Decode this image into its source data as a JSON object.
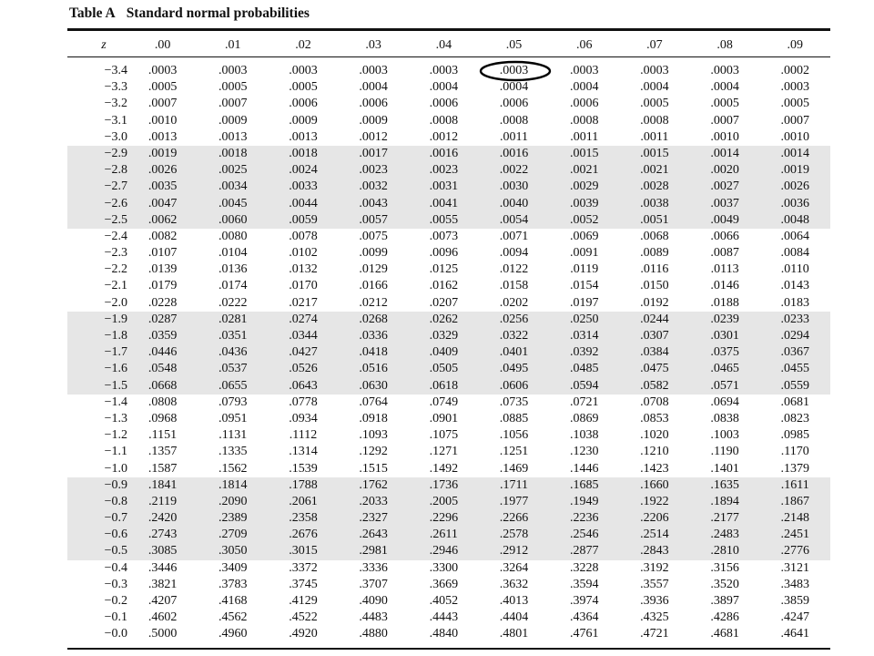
{
  "table": {
    "label": "Table A",
    "title": "Standard normal probabilities",
    "z_header": "z",
    "columns": [
      ".00",
      ".01",
      ".02",
      ".03",
      ".04",
      ".05",
      ".06",
      ".07",
      ".08",
      ".09"
    ],
    "highlight": {
      "row": 0,
      "col": 5
    },
    "shaded_rows": [
      5,
      6,
      7,
      8,
      9,
      15,
      16,
      17,
      18,
      19,
      25,
      26,
      27,
      28,
      29
    ],
    "rows": [
      {
        "z": "−3.4",
        "values": [
          ".0003",
          ".0003",
          ".0003",
          ".0003",
          ".0003",
          ".0003",
          ".0003",
          ".0003",
          ".0003",
          ".0002"
        ]
      },
      {
        "z": "−3.3",
        "values": [
          ".0005",
          ".0005",
          ".0005",
          ".0004",
          ".0004",
          ".0004",
          ".0004",
          ".0004",
          ".0004",
          ".0003"
        ]
      },
      {
        "z": "−3.2",
        "values": [
          ".0007",
          ".0007",
          ".0006",
          ".0006",
          ".0006",
          ".0006",
          ".0006",
          ".0005",
          ".0005",
          ".0005"
        ]
      },
      {
        "z": "−3.1",
        "values": [
          ".0010",
          ".0009",
          ".0009",
          ".0009",
          ".0008",
          ".0008",
          ".0008",
          ".0008",
          ".0007",
          ".0007"
        ]
      },
      {
        "z": "−3.0",
        "values": [
          ".0013",
          ".0013",
          ".0013",
          ".0012",
          ".0012",
          ".0011",
          ".0011",
          ".0011",
          ".0010",
          ".0010"
        ]
      },
      {
        "z": "−2.9",
        "values": [
          ".0019",
          ".0018",
          ".0018",
          ".0017",
          ".0016",
          ".0016",
          ".0015",
          ".0015",
          ".0014",
          ".0014"
        ]
      },
      {
        "z": "−2.8",
        "values": [
          ".0026",
          ".0025",
          ".0024",
          ".0023",
          ".0023",
          ".0022",
          ".0021",
          ".0021",
          ".0020",
          ".0019"
        ]
      },
      {
        "z": "−2.7",
        "values": [
          ".0035",
          ".0034",
          ".0033",
          ".0032",
          ".0031",
          ".0030",
          ".0029",
          ".0028",
          ".0027",
          ".0026"
        ]
      },
      {
        "z": "−2.6",
        "values": [
          ".0047",
          ".0045",
          ".0044",
          ".0043",
          ".0041",
          ".0040",
          ".0039",
          ".0038",
          ".0037",
          ".0036"
        ]
      },
      {
        "z": "−2.5",
        "values": [
          ".0062",
          ".0060",
          ".0059",
          ".0057",
          ".0055",
          ".0054",
          ".0052",
          ".0051",
          ".0049",
          ".0048"
        ]
      },
      {
        "z": "−2.4",
        "values": [
          ".0082",
          ".0080",
          ".0078",
          ".0075",
          ".0073",
          ".0071",
          ".0069",
          ".0068",
          ".0066",
          ".0064"
        ]
      },
      {
        "z": "−2.3",
        "values": [
          ".0107",
          ".0104",
          ".0102",
          ".0099",
          ".0096",
          ".0094",
          ".0091",
          ".0089",
          ".0087",
          ".0084"
        ]
      },
      {
        "z": "−2.2",
        "values": [
          ".0139",
          ".0136",
          ".0132",
          ".0129",
          ".0125",
          ".0122",
          ".0119",
          ".0116",
          ".0113",
          ".0110"
        ]
      },
      {
        "z": "−2.1",
        "values": [
          ".0179",
          ".0174",
          ".0170",
          ".0166",
          ".0162",
          ".0158",
          ".0154",
          ".0150",
          ".0146",
          ".0143"
        ]
      },
      {
        "z": "−2.0",
        "values": [
          ".0228",
          ".0222",
          ".0217",
          ".0212",
          ".0207",
          ".0202",
          ".0197",
          ".0192",
          ".0188",
          ".0183"
        ]
      },
      {
        "z": "−1.9",
        "values": [
          ".0287",
          ".0281",
          ".0274",
          ".0268",
          ".0262",
          ".0256",
          ".0250",
          ".0244",
          ".0239",
          ".0233"
        ]
      },
      {
        "z": "−1.8",
        "values": [
          ".0359",
          ".0351",
          ".0344",
          ".0336",
          ".0329",
          ".0322",
          ".0314",
          ".0307",
          ".0301",
          ".0294"
        ]
      },
      {
        "z": "−1.7",
        "values": [
          ".0446",
          ".0436",
          ".0427",
          ".0418",
          ".0409",
          ".0401",
          ".0392",
          ".0384",
          ".0375",
          ".0367"
        ]
      },
      {
        "z": "−1.6",
        "values": [
          ".0548",
          ".0537",
          ".0526",
          ".0516",
          ".0505",
          ".0495",
          ".0485",
          ".0475",
          ".0465",
          ".0455"
        ]
      },
      {
        "z": "−1.5",
        "values": [
          ".0668",
          ".0655",
          ".0643",
          ".0630",
          ".0618",
          ".0606",
          ".0594",
          ".0582",
          ".0571",
          ".0559"
        ]
      },
      {
        "z": "−1.4",
        "values": [
          ".0808",
          ".0793",
          ".0778",
          ".0764",
          ".0749",
          ".0735",
          ".0721",
          ".0708",
          ".0694",
          ".0681"
        ]
      },
      {
        "z": "−1.3",
        "values": [
          ".0968",
          ".0951",
          ".0934",
          ".0918",
          ".0901",
          ".0885",
          ".0869",
          ".0853",
          ".0838",
          ".0823"
        ]
      },
      {
        "z": "−1.2",
        "values": [
          ".1151",
          ".1131",
          ".1112",
          ".1093",
          ".1075",
          ".1056",
          ".1038",
          ".1020",
          ".1003",
          ".0985"
        ]
      },
      {
        "z": "−1.1",
        "values": [
          ".1357",
          ".1335",
          ".1314",
          ".1292",
          ".1271",
          ".1251",
          ".1230",
          ".1210",
          ".1190",
          ".1170"
        ]
      },
      {
        "z": "−1.0",
        "values": [
          ".1587",
          ".1562",
          ".1539",
          ".1515",
          ".1492",
          ".1469",
          ".1446",
          ".1423",
          ".1401",
          ".1379"
        ]
      },
      {
        "z": "−0.9",
        "values": [
          ".1841",
          ".1814",
          ".1788",
          ".1762",
          ".1736",
          ".1711",
          ".1685",
          ".1660",
          ".1635",
          ".1611"
        ]
      },
      {
        "z": "−0.8",
        "values": [
          ".2119",
          ".2090",
          ".2061",
          ".2033",
          ".2005",
          ".1977",
          ".1949",
          ".1922",
          ".1894",
          ".1867"
        ]
      },
      {
        "z": "−0.7",
        "values": [
          ".2420",
          ".2389",
          ".2358",
          ".2327",
          ".2296",
          ".2266",
          ".2236",
          ".2206",
          ".2177",
          ".2148"
        ]
      },
      {
        "z": "−0.6",
        "values": [
          ".2743",
          ".2709",
          ".2676",
          ".2643",
          ".2611",
          ".2578",
          ".2546",
          ".2514",
          ".2483",
          ".2451"
        ]
      },
      {
        "z": "−0.5",
        "values": [
          ".3085",
          ".3050",
          ".3015",
          ".2981",
          ".2946",
          ".2912",
          ".2877",
          ".2843",
          ".2810",
          ".2776"
        ]
      },
      {
        "z": "−0.4",
        "values": [
          ".3446",
          ".3409",
          ".3372",
          ".3336",
          ".3300",
          ".3264",
          ".3228",
          ".3192",
          ".3156",
          ".3121"
        ]
      },
      {
        "z": "−0.3",
        "values": [
          ".3821",
          ".3783",
          ".3745",
          ".3707",
          ".3669",
          ".3632",
          ".3594",
          ".3557",
          ".3520",
          ".3483"
        ]
      },
      {
        "z": "−0.2",
        "values": [
          ".4207",
          ".4168",
          ".4129",
          ".4090",
          ".4052",
          ".4013",
          ".3974",
          ".3936",
          ".3897",
          ".3859"
        ]
      },
      {
        "z": "−0.1",
        "values": [
          ".4602",
          ".4562",
          ".4522",
          ".4483",
          ".4443",
          ".4404",
          ".4364",
          ".4325",
          ".4286",
          ".4247"
        ]
      },
      {
        "z": "−0.0",
        "values": [
          ".5000",
          ".4960",
          ".4920",
          ".4880",
          ".4840",
          ".4801",
          ".4761",
          ".4721",
          ".4681",
          ".4641"
        ]
      }
    ]
  }
}
